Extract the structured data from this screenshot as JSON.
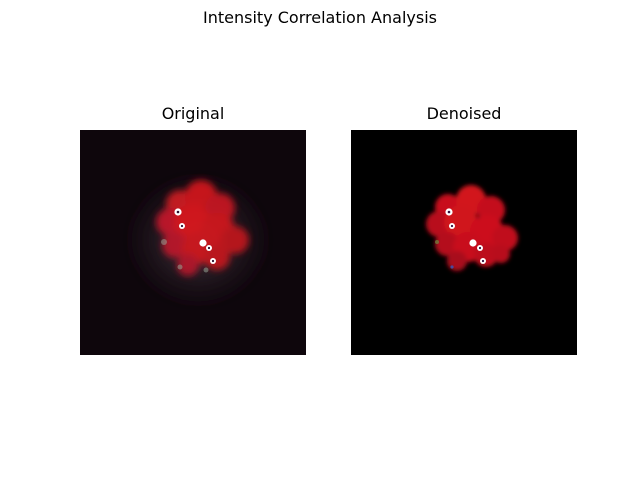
{
  "figure": {
    "title": "Intensity Correlation Analysis"
  },
  "panels": [
    {
      "title": "Original",
      "description": "fluorescence micrograph of a red-stained cell cluster on a dark, slightly hazy background with marked spots"
    },
    {
      "title": "Denoised",
      "description": "same cell cluster after denoising, background fully black with marked spots"
    }
  ],
  "colors": {
    "cluster_red": "#e0141c",
    "original_background": "#0e060c",
    "denoised_background": "#000000",
    "marker": "#ffffff"
  }
}
